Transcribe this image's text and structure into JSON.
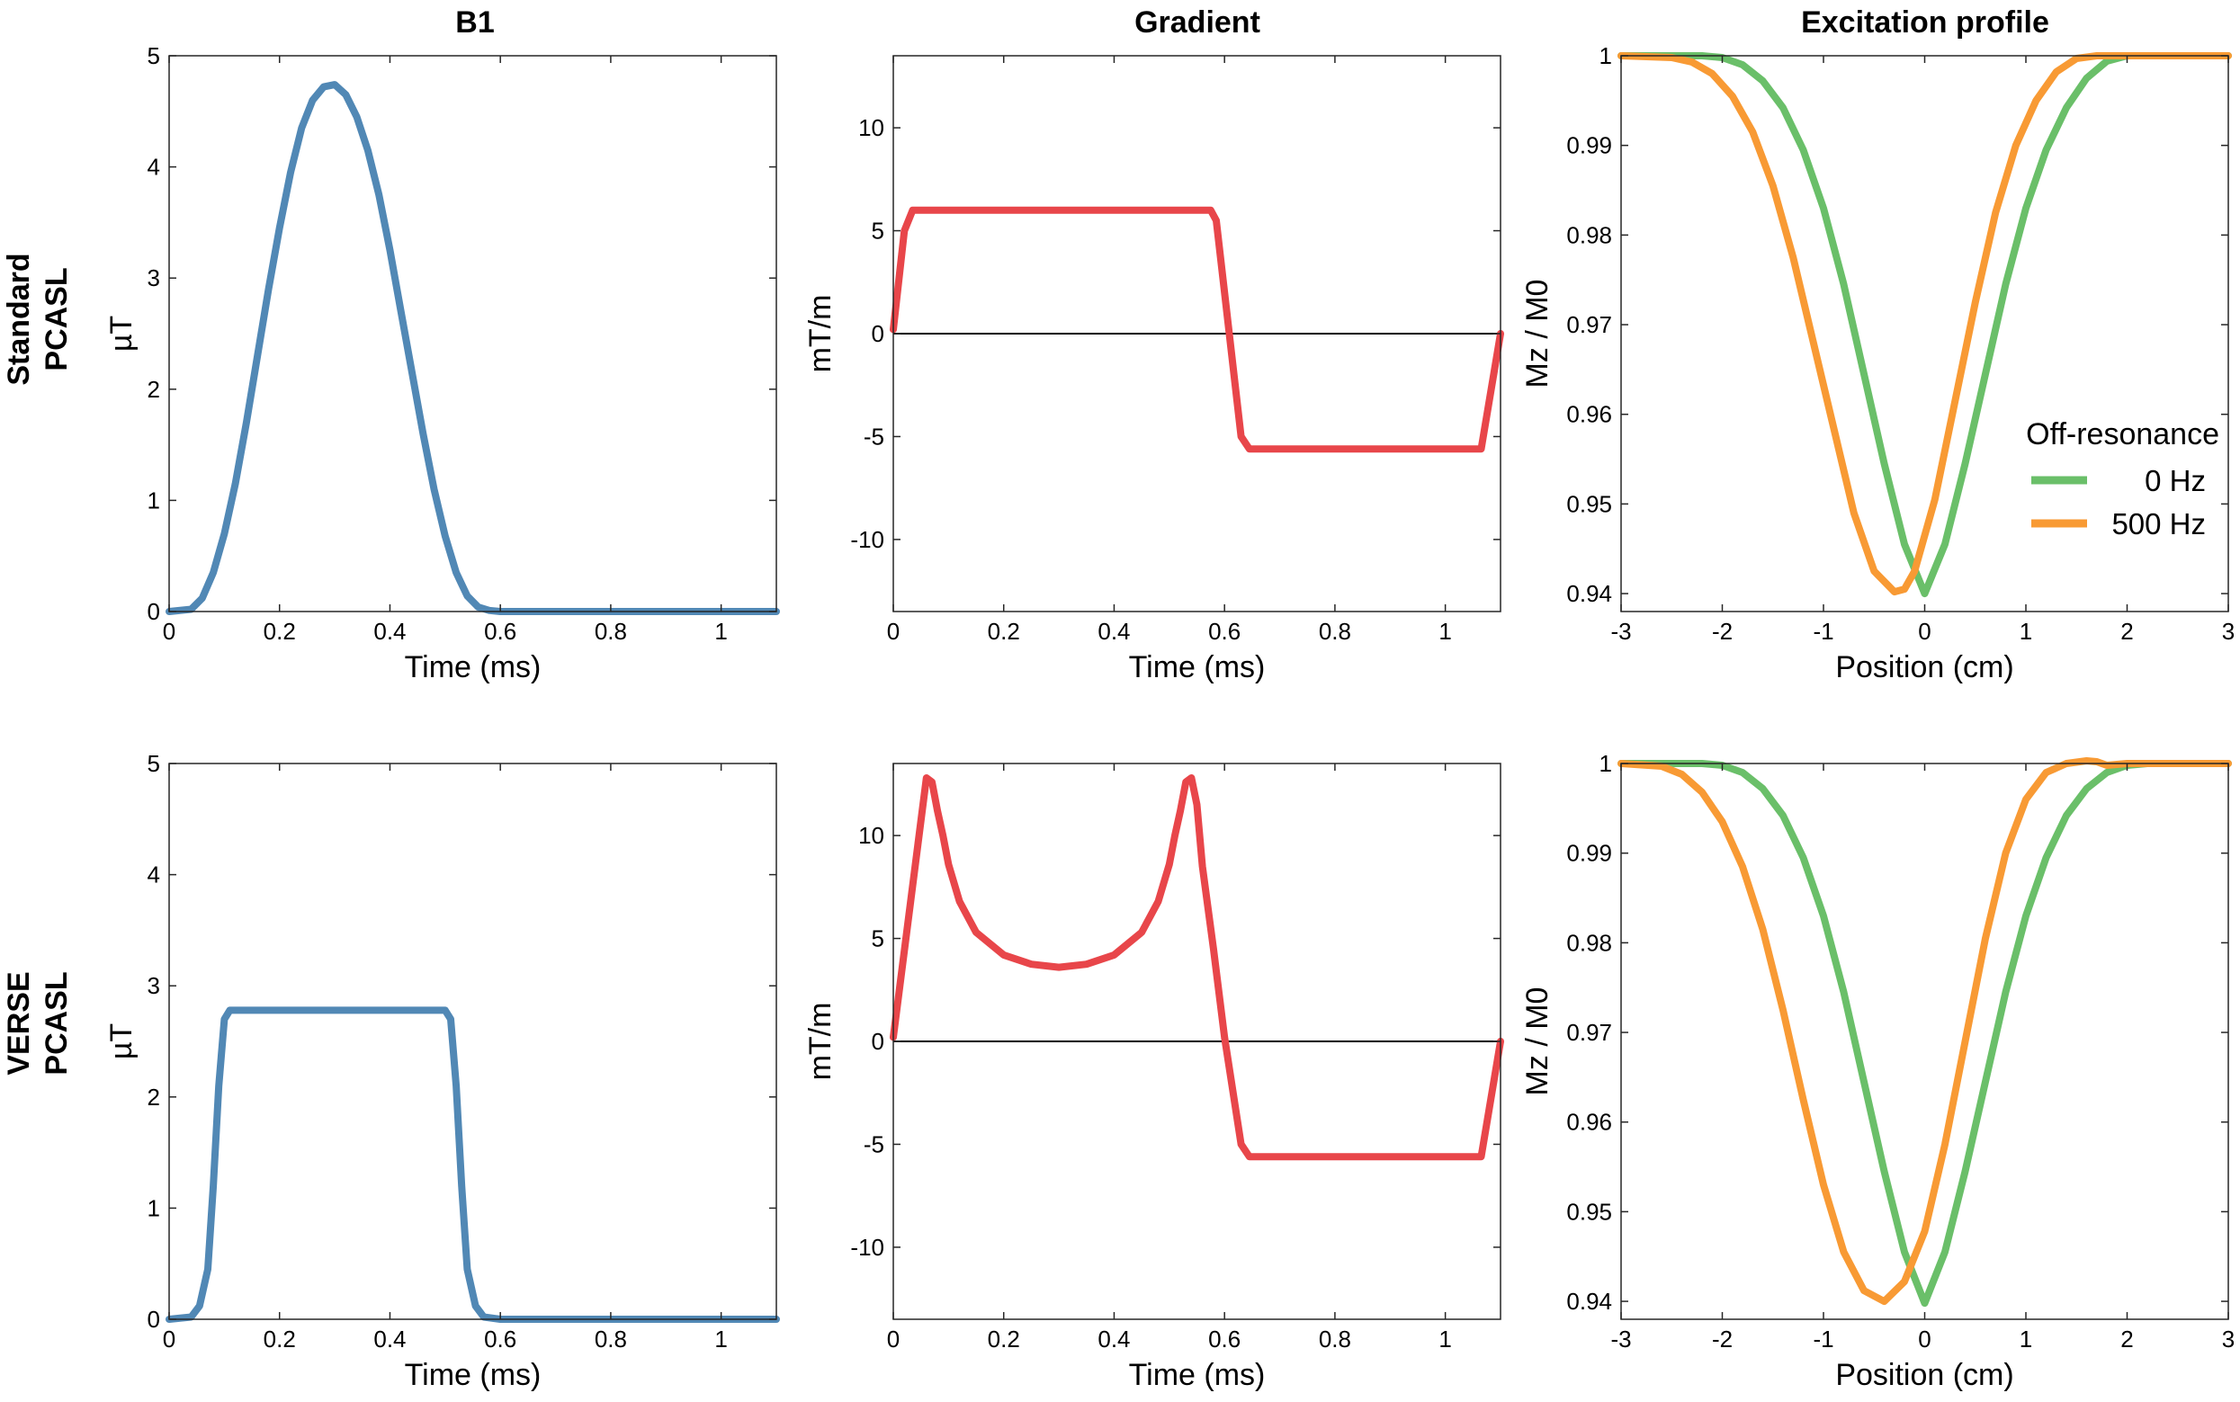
{
  "figure": {
    "column_titles": [
      "B1",
      "Gradient",
      "Excitation profile"
    ],
    "row_labels": [
      [
        "Standard",
        "PCASL"
      ],
      [
        "VERSE",
        "PCASL"
      ]
    ]
  },
  "colors": {
    "b1": "#5188b5",
    "gradient": "#e8464a",
    "green": "#6abf69",
    "orange": "#f89a34",
    "zero_line": "#000000",
    "axes": "#262626",
    "grid_tick": "#262626"
  },
  "legend": {
    "title": "Off-resonance",
    "entries": [
      "0 Hz",
      "500 Hz"
    ]
  },
  "chart_data": [
    {
      "id": "std_b1",
      "type": "line",
      "title": "B1",
      "xlabel": "Time (ms)",
      "ylabel": "µT",
      "xlim": [
        0,
        1.1
      ],
      "ylim": [
        0,
        5
      ],
      "xticks": [
        0,
        0.2,
        0.4,
        0.6,
        0.8,
        1
      ],
      "xticklabels": [
        "0",
        "0.2",
        "0.4",
        "0.6",
        "0.8",
        "1"
      ],
      "yticks": [
        0,
        1,
        2,
        3,
        4,
        5
      ],
      "yticklabels": [
        "0",
        "1",
        "2",
        "3",
        "4",
        "5"
      ],
      "series": [
        {
          "name": "B1",
          "color_key": "b1",
          "x": [
            0,
            0.04,
            0.06,
            0.08,
            0.1,
            0.12,
            0.14,
            0.16,
            0.18,
            0.2,
            0.22,
            0.24,
            0.26,
            0.28,
            0.3,
            0.32,
            0.34,
            0.36,
            0.38,
            0.4,
            0.42,
            0.44,
            0.46,
            0.48,
            0.5,
            0.52,
            0.54,
            0.56,
            0.58,
            0.6,
            1.1
          ],
          "y": [
            0,
            0.02,
            0.12,
            0.35,
            0.7,
            1.15,
            1.7,
            2.3,
            2.9,
            3.45,
            3.95,
            4.35,
            4.6,
            4.72,
            4.74,
            4.65,
            4.45,
            4.15,
            3.75,
            3.25,
            2.7,
            2.15,
            1.6,
            1.1,
            0.68,
            0.35,
            0.14,
            0.04,
            0.01,
            0,
            0
          ]
        }
      ]
    },
    {
      "id": "std_grad",
      "type": "line",
      "title": "Gradient",
      "xlabel": "Time (ms)",
      "ylabel": "mT/m",
      "xlim": [
        0,
        1.1
      ],
      "ylim": [
        -13.5,
        13.5
      ],
      "xticks": [
        0,
        0.2,
        0.4,
        0.6,
        0.8,
        1
      ],
      "xticklabels": [
        "0",
        "0.2",
        "0.4",
        "0.6",
        "0.8",
        "1"
      ],
      "yticks": [
        -10,
        -5,
        0,
        5,
        10
      ],
      "yticklabels": [
        "-10",
        "-5",
        "0",
        "5",
        "10"
      ],
      "zero_line": true,
      "series": [
        {
          "name": "Gradient",
          "color_key": "gradient",
          "x": [
            0,
            0.02,
            0.035,
            0.575,
            0.585,
            0.63,
            0.645,
            1.065,
            1.1
          ],
          "y": [
            0.2,
            5,
            6,
            6,
            5.5,
            -5,
            -5.6,
            -5.6,
            0
          ]
        }
      ]
    },
    {
      "id": "std_profile",
      "type": "line",
      "title": "Excitation profile",
      "xlabel": "Position (cm)",
      "ylabel": "Mz / M0",
      "xlim": [
        -3,
        3
      ],
      "ylim": [
        0.938,
        1.0
      ],
      "xticks": [
        -3,
        -2,
        -1,
        0,
        1,
        2,
        3
      ],
      "xticklabels": [
        "-3",
        "-2",
        "-1",
        "0",
        "1",
        "2",
        "3"
      ],
      "yticks": [
        0.94,
        0.95,
        0.96,
        0.97,
        0.98,
        0.99,
        1
      ],
      "yticklabels": [
        "0.94",
        "0.95",
        "0.96",
        "0.97",
        "0.98",
        "0.99",
        "1"
      ],
      "legend": true,
      "series": [
        {
          "name": "0 Hz",
          "color_key": "green",
          "x": [
            -3,
            -2.2,
            -2,
            -1.8,
            -1.6,
            -1.4,
            -1.2,
            -1,
            -0.8,
            -0.6,
            -0.4,
            -0.2,
            0,
            0.2,
            0.4,
            0.6,
            0.8,
            1,
            1.2,
            1.4,
            1.6,
            1.8,
            2,
            3
          ],
          "y": [
            1,
            1,
            0.9998,
            0.999,
            0.9972,
            0.9942,
            0.9895,
            0.983,
            0.9745,
            0.9645,
            0.9545,
            0.9455,
            0.94,
            0.9455,
            0.9545,
            0.9645,
            0.9745,
            0.983,
            0.9895,
            0.9942,
            0.9975,
            0.9994,
            1,
            1
          ]
        },
        {
          "name": "500 Hz",
          "color_key": "orange",
          "x": [
            -3,
            -2.5,
            -2.3,
            -2.1,
            -1.9,
            -1.7,
            -1.5,
            -1.3,
            -1.1,
            -0.9,
            -0.7,
            -0.5,
            -0.3,
            -0.2,
            -0.1,
            0.1,
            0.3,
            0.5,
            0.7,
            0.9,
            1.1,
            1.3,
            1.5,
            1.7,
            1.9,
            3
          ],
          "y": [
            1,
            0.9998,
            0.9993,
            0.998,
            0.9955,
            0.9915,
            0.9855,
            0.9775,
            0.968,
            0.9585,
            0.949,
            0.9425,
            0.9402,
            0.9405,
            0.9425,
            0.9505,
            0.9615,
            0.9725,
            0.9825,
            0.99,
            0.995,
            0.9982,
            0.9997,
            1,
            1,
            1
          ]
        }
      ]
    },
    {
      "id": "verse_b1",
      "type": "line",
      "title": "",
      "xlabel": "Time (ms)",
      "ylabel": "µT",
      "xlim": [
        0,
        1.1
      ],
      "ylim": [
        0,
        5
      ],
      "xticks": [
        0,
        0.2,
        0.4,
        0.6,
        0.8,
        1
      ],
      "xticklabels": [
        "0",
        "0.2",
        "0.4",
        "0.6",
        "0.8",
        "1"
      ],
      "yticks": [
        0,
        1,
        2,
        3,
        4,
        5
      ],
      "yticklabels": [
        "0",
        "1",
        "2",
        "3",
        "4",
        "5"
      ],
      "series": [
        {
          "name": "B1",
          "color_key": "b1",
          "x": [
            0,
            0.04,
            0.055,
            0.07,
            0.08,
            0.09,
            0.1,
            0.11,
            0.5,
            0.51,
            0.52,
            0.53,
            0.54,
            0.555,
            0.57,
            0.6,
            1.1
          ],
          "y": [
            0,
            0.02,
            0.12,
            0.45,
            1.2,
            2.1,
            2.7,
            2.78,
            2.78,
            2.7,
            2.1,
            1.2,
            0.45,
            0.12,
            0.02,
            0,
            0
          ]
        }
      ]
    },
    {
      "id": "verse_grad",
      "type": "line",
      "title": "",
      "xlabel": "Time (ms)",
      "ylabel": "mT/m",
      "xlim": [
        0,
        1.1
      ],
      "ylim": [
        -13.5,
        13.5
      ],
      "xticks": [
        0,
        0.2,
        0.4,
        0.6,
        0.8,
        1
      ],
      "xticklabels": [
        "0",
        "0.2",
        "0.4",
        "0.6",
        "0.8",
        "1"
      ],
      "yticks": [
        -10,
        -5,
        0,
        5,
        10
      ],
      "yticklabels": [
        "-10",
        "-5",
        "0",
        "5",
        "10"
      ],
      "zero_line": true,
      "series": [
        {
          "name": "Gradient",
          "color_key": "gradient",
          "x": [
            0,
            0.03,
            0.06,
            0.07,
            0.08,
            0.09,
            0.1,
            0.12,
            0.15,
            0.2,
            0.25,
            0.3,
            0.35,
            0.4,
            0.45,
            0.48,
            0.5,
            0.51,
            0.52,
            0.53,
            0.54,
            0.55,
            0.56,
            0.58,
            0.6,
            0.63,
            0.645,
            1.065,
            1.1
          ],
          "y": [
            0.2,
            6.5,
            12.8,
            12.6,
            11.2,
            10,
            8.6,
            6.8,
            5.3,
            4.2,
            3.75,
            3.6,
            3.75,
            4.2,
            5.3,
            6.8,
            8.6,
            10,
            11.2,
            12.6,
            12.8,
            11.5,
            8.5,
            4.5,
            0.2,
            -5,
            -5.6,
            -5.6,
            0
          ]
        }
      ]
    },
    {
      "id": "verse_profile",
      "type": "line",
      "title": "",
      "xlabel": "Position (cm)",
      "ylabel": "Mz / M0",
      "xlim": [
        -3,
        3
      ],
      "ylim": [
        0.938,
        1.0
      ],
      "xticks": [
        -3,
        -2,
        -1,
        0,
        1,
        2,
        3
      ],
      "xticklabels": [
        "-3",
        "-2",
        "-1",
        "0",
        "1",
        "2",
        "3"
      ],
      "yticks": [
        0.94,
        0.95,
        0.96,
        0.97,
        0.98,
        0.99,
        1
      ],
      "yticklabels": [
        "0.94",
        "0.95",
        "0.96",
        "0.97",
        "0.98",
        "0.99",
        "1"
      ],
      "series": [
        {
          "name": "0 Hz",
          "color_key": "green",
          "x": [
            -3,
            -2.2,
            -2,
            -1.8,
            -1.6,
            -1.4,
            -1.2,
            -1,
            -0.8,
            -0.6,
            -0.4,
            -0.2,
            0,
            0.2,
            0.4,
            0.6,
            0.8,
            1,
            1.2,
            1.4,
            1.6,
            1.8,
            2,
            2.2,
            3
          ],
          "y": [
            1,
            1,
            0.9998,
            0.999,
            0.9972,
            0.9942,
            0.9895,
            0.983,
            0.9745,
            0.9645,
            0.9545,
            0.9455,
            0.9398,
            0.9455,
            0.9545,
            0.9645,
            0.9745,
            0.983,
            0.9895,
            0.9942,
            0.9972,
            0.999,
            0.9998,
            1,
            1
          ]
        },
        {
          "name": "500 Hz",
          "color_key": "orange",
          "x": [
            -3,
            -2.6,
            -2.4,
            -2.2,
            -2,
            -1.8,
            -1.6,
            -1.4,
            -1.2,
            -1,
            -0.8,
            -0.6,
            -0.4,
            -0.2,
            0,
            0.2,
            0.4,
            0.6,
            0.8,
            1,
            1.2,
            1.4,
            1.6,
            1.7,
            1.8,
            2,
            3
          ],
          "y": [
            1,
            0.9997,
            0.9988,
            0.9968,
            0.9935,
            0.9885,
            0.9815,
            0.9725,
            0.9625,
            0.953,
            0.9455,
            0.9412,
            0.94,
            0.9422,
            0.9478,
            0.9575,
            0.969,
            0.9805,
            0.99,
            0.996,
            0.999,
            1.0,
            1.0003,
            1.0002,
            0.9998,
            1,
            1
          ]
        }
      ]
    }
  ]
}
